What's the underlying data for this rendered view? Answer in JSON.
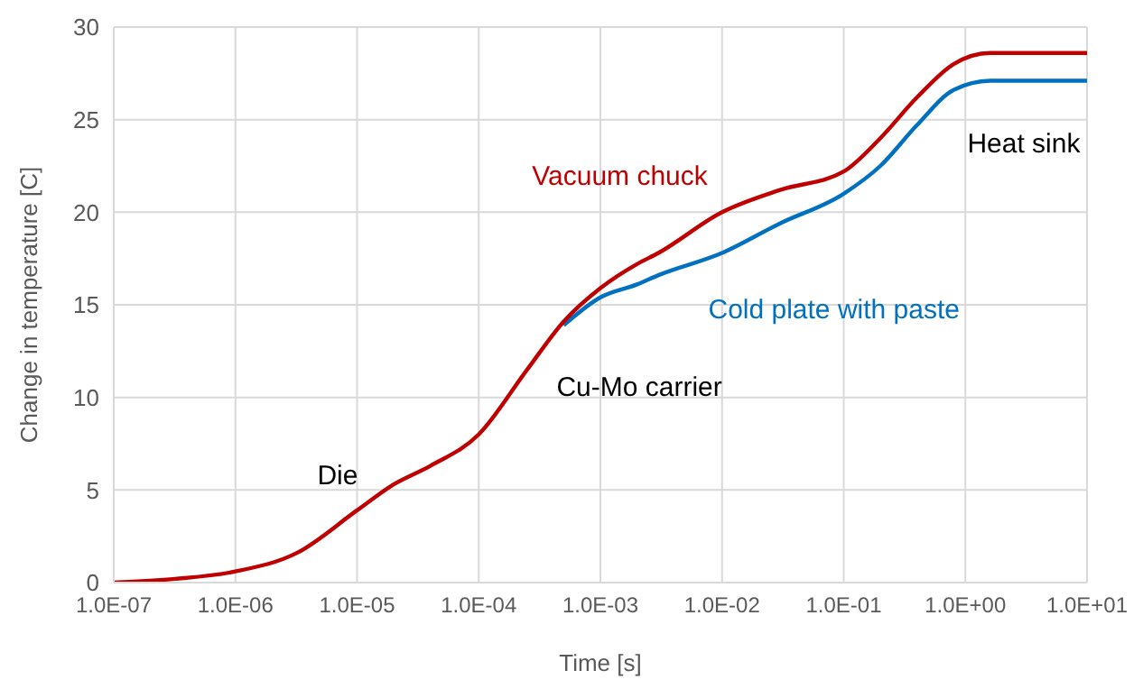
{
  "chart_data": {
    "type": "line",
    "xlabel": "Time [s]",
    "ylabel": "Change in temperature [C]",
    "log": "x",
    "grid": true,
    "legend": false,
    "marker": "none",
    "line_style": "solid",
    "xlim": [
      1e-07,
      10
    ],
    "ylim": [
      0,
      30
    ],
    "xticks": [
      {
        "value": 1e-07,
        "label": "1.0E-07"
      },
      {
        "value": 1e-06,
        "label": "1.0E-06"
      },
      {
        "value": 1e-05,
        "label": "1.0E-05"
      },
      {
        "value": 0.0001,
        "label": "1.0E-04"
      },
      {
        "value": 0.001,
        "label": "1.0E-03"
      },
      {
        "value": 0.01,
        "label": "1.0E-02"
      },
      {
        "value": 0.1,
        "label": "1.0E-01"
      },
      {
        "value": 1,
        "label": "1.0E+00"
      },
      {
        "value": 10,
        "label": "1.0E+01"
      }
    ],
    "yticks": [
      0,
      5,
      10,
      15,
      20,
      25,
      30
    ],
    "x": [
      1e-07,
      3.2e-07,
      1e-06,
      3.2e-06,
      1e-05,
      2e-05,
      4e-05,
      0.0001,
      0.00025,
      0.0005,
      0.001,
      0.002,
      0.003,
      0.01,
      0.03,
      0.1,
      0.2,
      0.4,
      0.8,
      1.6,
      3,
      10
    ],
    "series": [
      {
        "name": "Vacuum chuck",
        "color": "#c00000",
        "values": [
          0,
          0.2,
          0.6,
          1.6,
          3.9,
          5.3,
          6.3,
          8,
          11.5,
          14.1,
          15.9,
          17.2,
          17.8,
          20,
          21.2,
          22.2,
          24,
          26.2,
          28,
          28.6,
          28.6,
          28.6
        ]
      },
      {
        "name": "Cold plate with paste",
        "color": "#0070c0",
        "values": [
          null,
          null,
          null,
          null,
          null,
          null,
          null,
          null,
          null,
          13.9,
          15.4,
          16.1,
          16.6,
          17.8,
          19.4,
          21,
          22.5,
          24.7,
          26.6,
          27.1,
          27.1,
          27.1
        ]
      }
    ],
    "annotations": [
      "Die",
      "Cu-Mo carrier",
      "Heat sink"
    ]
  }
}
